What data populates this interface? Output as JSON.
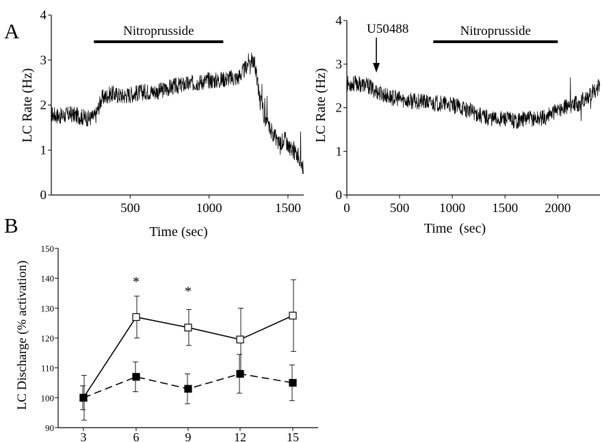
{
  "panel_labels": {
    "a": "A",
    "b": "B"
  },
  "chart_data": [
    {
      "id": "panel-a-left",
      "type": "line",
      "xlabel": "Time (sec)",
      "ylabel": "LC Rate (Hz)",
      "xlim": [
        0,
        1600
      ],
      "ylim": [
        0,
        4
      ],
      "xticks": [
        500,
        1000,
        1500
      ],
      "yticks": [
        0,
        1,
        2,
        3,
        4
      ],
      "annotations": [
        {
          "type": "bar",
          "label": "Nitroprusside",
          "x_start": 270,
          "x_end": 1090
        }
      ],
      "series": [
        {
          "x": [
            0,
            60,
            120,
            180,
            240,
            280,
            320,
            380,
            450,
            520,
            600,
            680,
            760,
            840,
            920,
            1000,
            1060,
            1120,
            1180,
            1230,
            1260,
            1290,
            1320,
            1360,
            1400,
            1440,
            1480,
            1520,
            1560,
            1600
          ],
          "values": [
            1.8,
            1.75,
            1.8,
            1.75,
            1.7,
            1.75,
            2.15,
            2.25,
            2.2,
            2.25,
            2.3,
            2.3,
            2.4,
            2.45,
            2.5,
            2.55,
            2.55,
            2.6,
            2.6,
            2.8,
            3.05,
            2.9,
            2.2,
            1.6,
            1.4,
            1.15,
            1.25,
            1.0,
            0.9,
            0.6
          ]
        }
      ]
    },
    {
      "id": "panel-a-right",
      "type": "line",
      "xlabel": "Time  (sec)",
      "ylabel": "LC Rate (Hz)",
      "xlim": [
        0,
        2400
      ],
      "ylim": [
        0,
        4
      ],
      "xticks": [
        0,
        500,
        1000,
        1500,
        2000
      ],
      "yticks": [
        0,
        1,
        2,
        3,
        4
      ],
      "annotations": [
        {
          "type": "arrow",
          "label": "U50488",
          "x": 280
        },
        {
          "type": "bar",
          "label": "Nitroprusside",
          "x_start": 820,
          "x_end": 2000
        }
      ],
      "series": [
        {
          "x": [
            0,
            100,
            200,
            300,
            400,
            500,
            600,
            700,
            800,
            900,
            1000,
            1100,
            1200,
            1300,
            1400,
            1500,
            1600,
            1700,
            1800,
            1900,
            2000,
            2100,
            2200,
            2300,
            2400
          ],
          "values": [
            2.55,
            2.55,
            2.5,
            2.35,
            2.25,
            2.2,
            2.15,
            2.15,
            2.1,
            2.1,
            2.05,
            2.0,
            1.9,
            1.8,
            1.75,
            1.75,
            1.7,
            1.75,
            1.75,
            1.8,
            1.95,
            2.05,
            2.1,
            2.3,
            2.5
          ]
        }
      ]
    },
    {
      "id": "panel-b",
      "type": "line",
      "xlabel": "",
      "ylabel": "LC Discharge (% activation)",
      "categories": [
        "3",
        "6",
        "9",
        "12",
        "15"
      ],
      "ylim": [
        90,
        150
      ],
      "yticks": [
        90,
        100,
        110,
        120,
        130,
        140,
        150
      ],
      "series": [
        {
          "marker": "open-square",
          "line": "solid",
          "values": [
            100,
            127,
            123.5,
            119.5,
            127.5
          ],
          "errors": [
            7.5,
            7,
            6,
            10.5,
            12
          ]
        },
        {
          "marker": "filled-square",
          "line": "dashed",
          "values": [
            100,
            107,
            103,
            108,
            105
          ],
          "errors": [
            4,
            5,
            5,
            6.5,
            6
          ]
        }
      ],
      "significance": [
        {
          "category": "6",
          "label": "*"
        },
        {
          "category": "9",
          "label": "*"
        }
      ]
    }
  ]
}
